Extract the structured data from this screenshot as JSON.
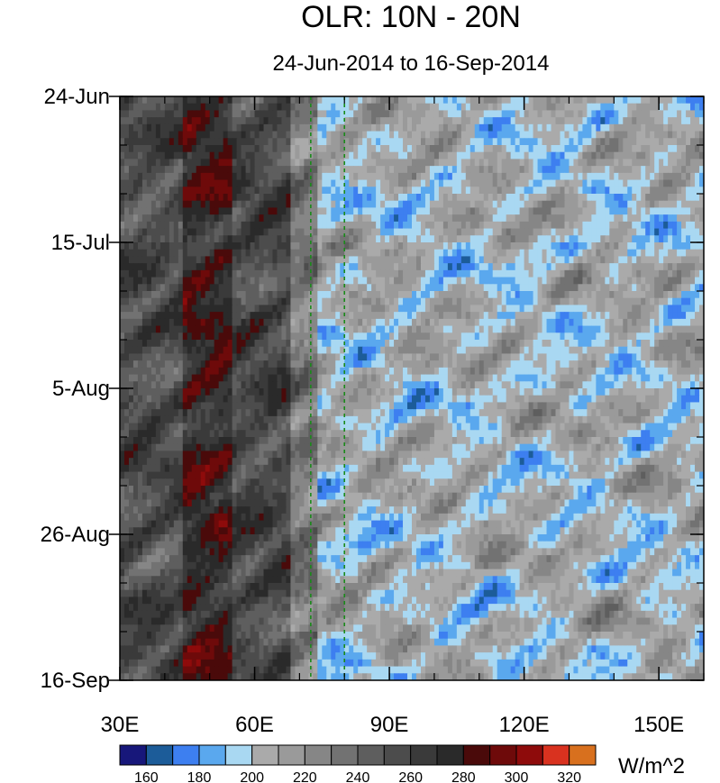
{
  "chart_data": {
    "type": "heatmap",
    "title": "OLR: 10N - 20N",
    "subtitle": "24-Jun-2014 to 16-Sep-2014",
    "x_range": [
      30,
      160
    ],
    "x_ticks": [
      {
        "value": 30,
        "label": "30E"
      },
      {
        "value": 60,
        "label": "60E"
      },
      {
        "value": 90,
        "label": "90E"
      },
      {
        "value": 120,
        "label": "120E"
      },
      {
        "value": 150,
        "label": "150E"
      }
    ],
    "y_range": [
      "2014-06-24",
      "2014-09-16"
    ],
    "y_ticks": [
      {
        "value": "2014-06-24",
        "label": "24-Jun"
      },
      {
        "value": "2014-07-15",
        "label": "15-Jul"
      },
      {
        "value": "2014-08-05",
        "label": "5-Aug"
      },
      {
        "value": "2014-08-26",
        "label": "26-Aug"
      },
      {
        "value": "2014-09-16",
        "label": "16-Sep"
      }
    ],
    "reference_lines_longitude": [
      72.5,
      80
    ],
    "colorbar": {
      "units": "W/m^2",
      "levels": [
        150,
        160,
        170,
        180,
        190,
        200,
        210,
        220,
        230,
        240,
        250,
        260,
        270,
        280,
        290,
        300,
        310,
        320,
        330
      ],
      "labels": [
        "160",
        "180",
        "200",
        "220",
        "240",
        "260",
        "280",
        "300",
        "320"
      ],
      "colors": [
        "#17177a",
        "#1c5c99",
        "#3d7ff0",
        "#5aa8ee",
        "#a9d8f2",
        "#aaaaaa",
        "#9a9a9a",
        "#868686",
        "#727272",
        "#5e5e5e",
        "#4c4c4c",
        "#3a3a3a",
        "#2a2a2a",
        "#4a0a0a",
        "#6e0a0a",
        "#8e0b0b",
        "#d9321f",
        "#d8701e"
      ]
    }
  }
}
